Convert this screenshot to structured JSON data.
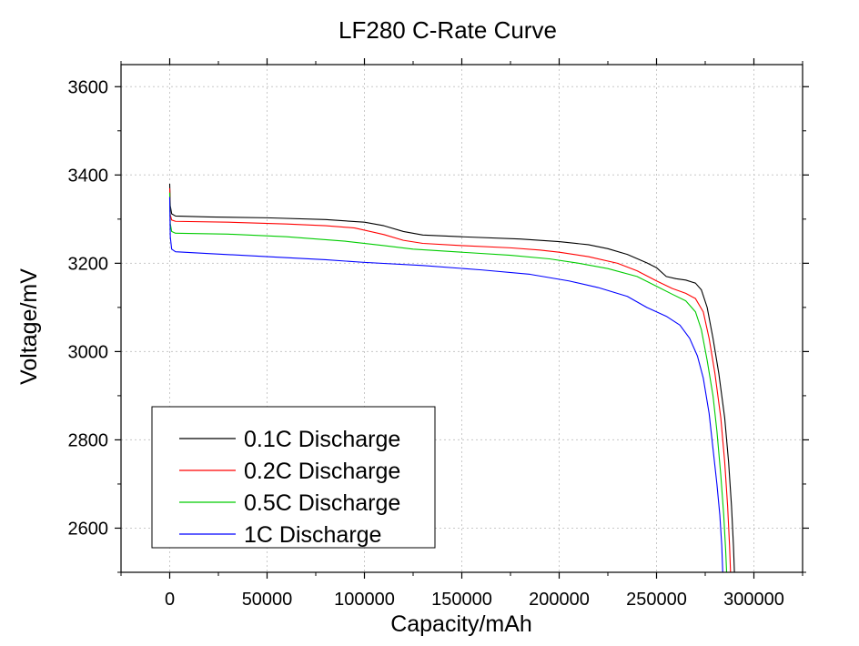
{
  "chart_data": {
    "type": "line",
    "title": "LF280 C-Rate Curve",
    "xlabel": "Capacity/mAh",
    "ylabel": "Voltage/mV",
    "xlim": [
      -25000,
      325000
    ],
    "ylim": [
      2500,
      3650
    ],
    "xticks": [
      0,
      50000,
      100000,
      150000,
      200000,
      250000,
      300000
    ],
    "yticks": [
      2600,
      2800,
      3000,
      3200,
      3400,
      3600
    ],
    "grid": true,
    "legend_position": "bottom-left",
    "series": [
      {
        "name": "0.1C Discharge",
        "color": "#000000",
        "points": [
          [
            0,
            3380
          ],
          [
            300,
            3330
          ],
          [
            1000,
            3312
          ],
          [
            3000,
            3307
          ],
          [
            20000,
            3305
          ],
          [
            50000,
            3303
          ],
          [
            80000,
            3299
          ],
          [
            100000,
            3293
          ],
          [
            110000,
            3285
          ],
          [
            120000,
            3272
          ],
          [
            130000,
            3264
          ],
          [
            150000,
            3260
          ],
          [
            180000,
            3255
          ],
          [
            200000,
            3249
          ],
          [
            215000,
            3242
          ],
          [
            225000,
            3233
          ],
          [
            235000,
            3220
          ],
          [
            245000,
            3201
          ],
          [
            250000,
            3190
          ],
          [
            255000,
            3170
          ],
          [
            260000,
            3165
          ],
          [
            265000,
            3162
          ],
          [
            270000,
            3155
          ],
          [
            273000,
            3140
          ],
          [
            276000,
            3100
          ],
          [
            279000,
            3030
          ],
          [
            282000,
            2950
          ],
          [
            285000,
            2850
          ],
          [
            287000,
            2750
          ],
          [
            288500,
            2650
          ],
          [
            289500,
            2560
          ],
          [
            290000,
            2500
          ]
        ]
      },
      {
        "name": "0.2C Discharge",
        "color": "#ff0000",
        "points": [
          [
            0,
            3370
          ],
          [
            300,
            3310
          ],
          [
            1000,
            3298
          ],
          [
            3000,
            3295
          ],
          [
            30000,
            3293
          ],
          [
            60000,
            3289
          ],
          [
            80000,
            3285
          ],
          [
            95000,
            3280
          ],
          [
            110000,
            3265
          ],
          [
            120000,
            3252
          ],
          [
            130000,
            3245
          ],
          [
            150000,
            3240
          ],
          [
            175000,
            3235
          ],
          [
            190000,
            3230
          ],
          [
            200000,
            3225
          ],
          [
            215000,
            3215
          ],
          [
            230000,
            3200
          ],
          [
            240000,
            3183
          ],
          [
            250000,
            3160
          ],
          [
            258000,
            3143
          ],
          [
            265000,
            3132
          ],
          [
            270000,
            3120
          ],
          [
            274000,
            3090
          ],
          [
            277000,
            3030
          ],
          [
            280000,
            2950
          ],
          [
            283000,
            2850
          ],
          [
            285000,
            2750
          ],
          [
            286500,
            2650
          ],
          [
            287500,
            2560
          ],
          [
            288000,
            2500
          ]
        ]
      },
      {
        "name": "0.5C Discharge",
        "color": "#00cc00",
        "points": [
          [
            0,
            3360
          ],
          [
            300,
            3290
          ],
          [
            1000,
            3272
          ],
          [
            3000,
            3268
          ],
          [
            30000,
            3266
          ],
          [
            60000,
            3260
          ],
          [
            90000,
            3250
          ],
          [
            110000,
            3240
          ],
          [
            125000,
            3232
          ],
          [
            150000,
            3225
          ],
          [
            175000,
            3218
          ],
          [
            195000,
            3210
          ],
          [
            210000,
            3200
          ],
          [
            225000,
            3188
          ],
          [
            240000,
            3170
          ],
          [
            250000,
            3148
          ],
          [
            258000,
            3130
          ],
          [
            265000,
            3115
          ],
          [
            270000,
            3090
          ],
          [
            273000,
            3050
          ],
          [
            276000,
            2980
          ],
          [
            279000,
            2900
          ],
          [
            281000,
            2820
          ],
          [
            283000,
            2720
          ],
          [
            284500,
            2630
          ],
          [
            285500,
            2550
          ],
          [
            286000,
            2500
          ]
        ]
      },
      {
        "name": "1C Discharge",
        "color": "#0000ff",
        "points": [
          [
            0,
            3350
          ],
          [
            300,
            3260
          ],
          [
            1000,
            3232
          ],
          [
            3000,
            3226
          ],
          [
            20000,
            3222
          ],
          [
            50000,
            3215
          ],
          [
            80000,
            3208
          ],
          [
            100000,
            3202
          ],
          [
            130000,
            3195
          ],
          [
            160000,
            3185
          ],
          [
            185000,
            3175
          ],
          [
            205000,
            3160
          ],
          [
            220000,
            3145
          ],
          [
            235000,
            3125
          ],
          [
            245000,
            3100
          ],
          [
            255000,
            3080
          ],
          [
            262000,
            3060
          ],
          [
            267000,
            3030
          ],
          [
            271000,
            2990
          ],
          [
            274000,
            2940
          ],
          [
            277000,
            2860
          ],
          [
            279000,
            2780
          ],
          [
            281000,
            2700
          ],
          [
            282500,
            2630
          ],
          [
            283500,
            2560
          ],
          [
            284000,
            2500
          ]
        ]
      }
    ]
  }
}
